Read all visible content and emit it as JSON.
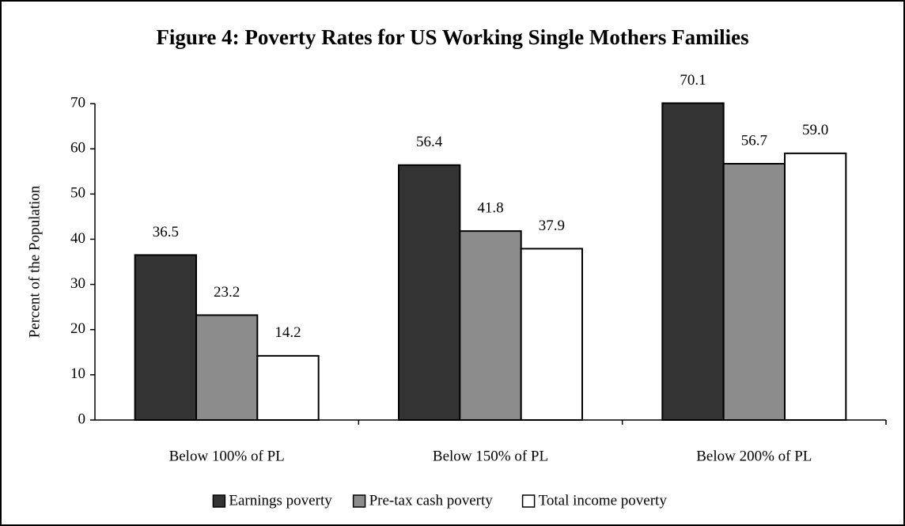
{
  "chart_data": {
    "type": "bar",
    "title": "Figure 4: Poverty Rates for US Working Single Mothers Families",
    "y_label": "Percent of the Population",
    "categories": [
      "Below 100% of PL",
      "Below 150% of PL",
      "Below 200% of PL"
    ],
    "series": [
      {
        "name": "Earnings poverty",
        "color": "#333333",
        "values": [
          36.5,
          56.4,
          70.1
        ],
        "value_labels": [
          "36.5",
          "56.4",
          "70.1"
        ]
      },
      {
        "name": "Pre-tax cash poverty",
        "color": "#8c8c8c",
        "values": [
          23.2,
          41.8,
          56.7
        ],
        "value_labels": [
          "23.2",
          "41.8",
          "56.7"
        ]
      },
      {
        "name": "Total income poverty",
        "color": "#ffffff",
        "values": [
          14.2,
          37.9,
          59.0
        ],
        "value_labels": [
          "14.2",
          "37.9",
          "59.0"
        ]
      }
    ],
    "ylim": [
      0,
      70
    ],
    "yticks": [
      0,
      10,
      20,
      30,
      40,
      50,
      60,
      70
    ],
    "grid": false,
    "legend": "bottom"
  }
}
